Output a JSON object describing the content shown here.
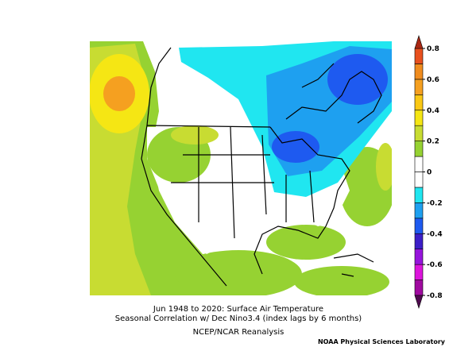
{
  "title_lines": [
    "Jun 1948 to 2020: Surface Air Temperature",
    "Seasonal Correlation w/ Dec Nino3.4 (index lags by 6 months)"
  ],
  "source": "NCEP/NCAR Reanalysis",
  "credit": "NOAA Physical Sciences Laboratory",
  "colorbar": {
    "lim": [
      -0.8,
      0.8
    ],
    "ticks": [
      0.8,
      0.6,
      0.4,
      0.2,
      0,
      -0.2,
      -0.4,
      -0.6,
      -0.8
    ],
    "colors": [
      "#a00aa0",
      "#dc14dc",
      "#9614dc",
      "#3c1ec8",
      "#1e5af0",
      "#1ea0f0",
      "#20e6f0",
      "#ffffff",
      "#ffffff",
      "#96d232",
      "#c8dc32",
      "#f5e614",
      "#fac814",
      "#f5a020",
      "#f08c1e",
      "#e8501e"
    ],
    "extend_colors": {
      "low": "#500a50",
      "high": "#aa2814"
    }
  }
}
